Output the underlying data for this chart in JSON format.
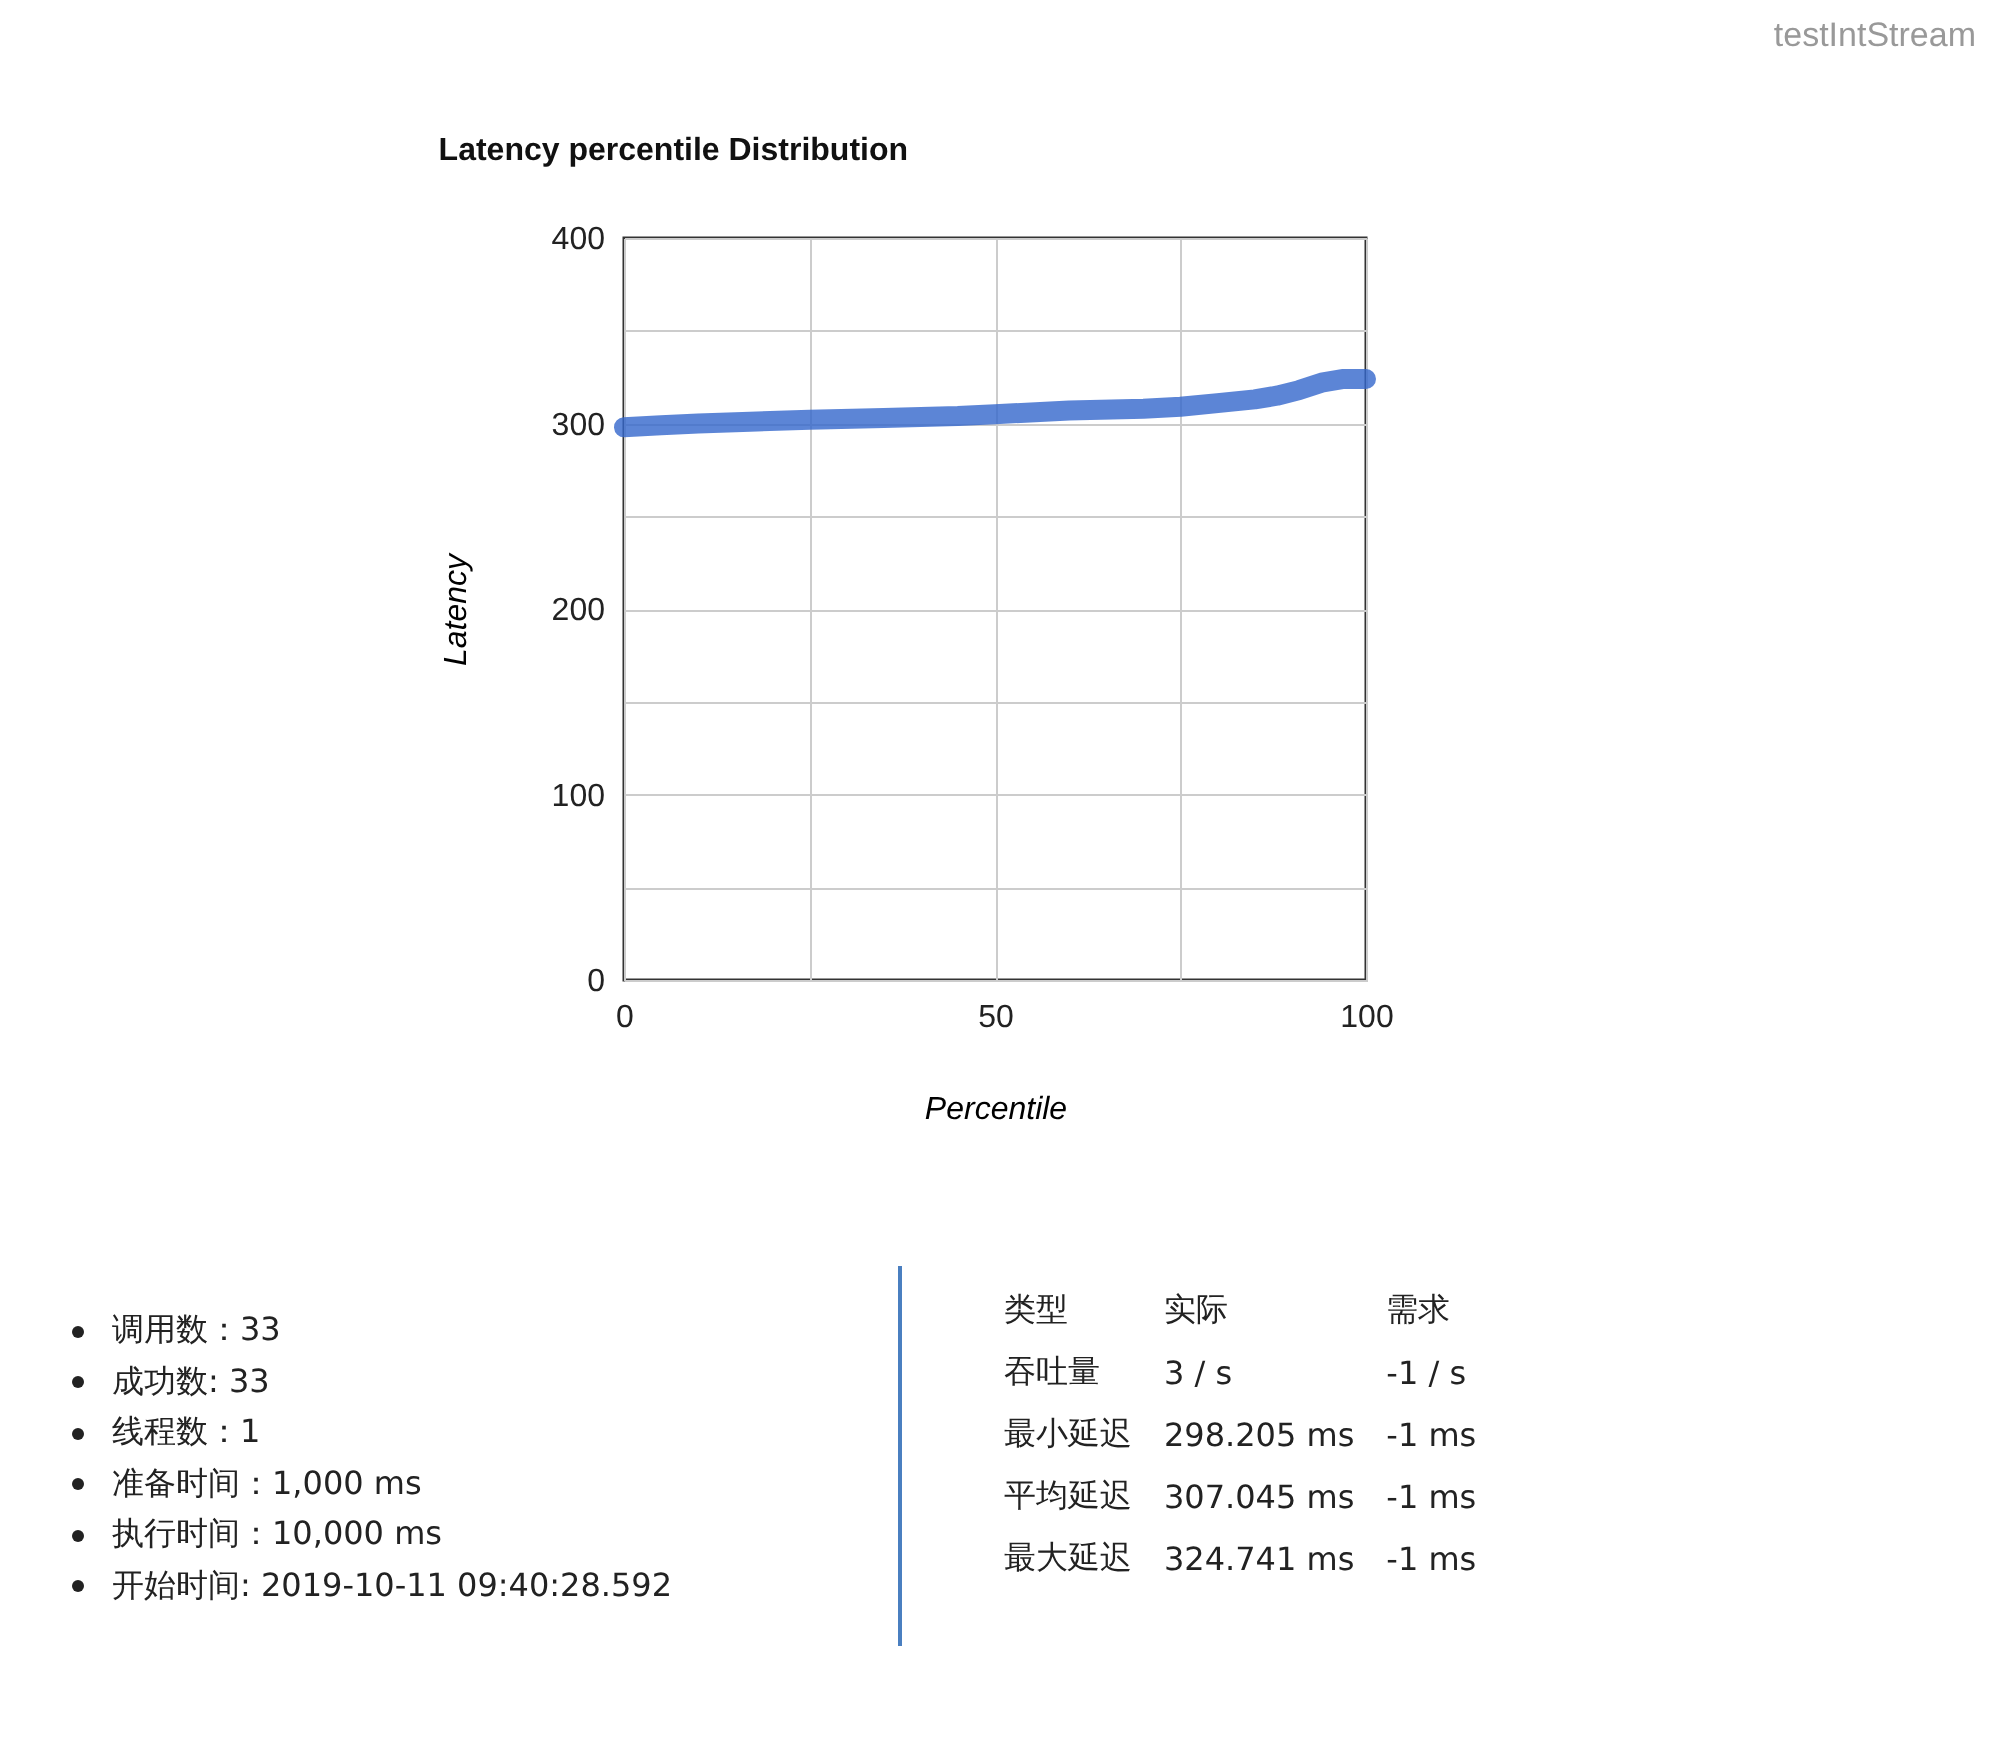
{
  "chart_data": {
    "type": "line",
    "title": "Latency percentile Distribution",
    "xlabel": "Percentile",
    "ylabel": "Latency",
    "x": [
      0,
      5,
      10,
      17,
      25,
      35,
      45,
      50,
      60,
      70,
      75,
      80,
      85,
      88,
      91,
      94,
      97,
      100
    ],
    "series": [
      {
        "color": "#3366cc",
        "values": [
          298,
          299,
          300,
          301,
          302,
          303,
          304,
          305,
          307,
          308,
          309,
          311,
          313,
          315,
          318,
          322,
          324,
          324
        ]
      }
    ],
    "xlim": [
      0,
      100
    ],
    "ylim": [
      0,
      400
    ],
    "xticks": [
      0,
      {
        "value": 25,
        "label": null
      },
      50,
      {
        "value": 75,
        "label": null
      },
      100
    ],
    "yticks": [
      0,
      {
        "value": 50,
        "label": null
      },
      100,
      {
        "value": 150,
        "label": null
      },
      200,
      {
        "value": 250,
        "label": null
      },
      300,
      {
        "value": 350,
        "label": null
      },
      400
    ],
    "grid": true,
    "marker": "none",
    "line_style": "solid",
    "annotations": [
      "testIntStream",
      "调用数：33",
      "成功数: 33",
      "线程数：1",
      "准备时间：1,000 ms",
      "执行时间：10,000 ms",
      "开始时间: 2019-10-11 09:40:28.592",
      "类型",
      "实际",
      "需求",
      "吞吐量",
      "3 / s",
      "-1 / s",
      "最小延迟",
      "298.205 ms",
      "-1 ms",
      "平均延迟",
      "307.045 ms",
      "-1 ms",
      "最大延迟",
      "324.741 ms",
      "-1 ms"
    ]
  }
}
